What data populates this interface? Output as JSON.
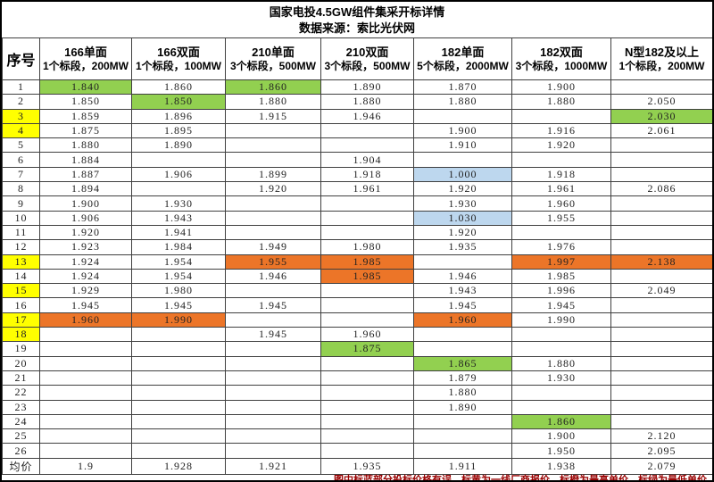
{
  "title": "国家电投4.5GW组件集采开标详情",
  "subtitle": "数据来源：索比光伏网",
  "footer_note": "图中标蓝部分投标价格有误，标黄为一线厂商报价，标橙为最高单价，标绿为最低单价",
  "colors": {
    "lowest_green": "#92D050",
    "tier1_yellow": "#FFFF00",
    "highest_orange": "#EC7528",
    "error_blue": "#BDD7EE",
    "note_red": "#990000"
  },
  "table": {
    "seq_header": "序号",
    "avg_label": "均价",
    "columns": [
      {
        "title": "166单面",
        "sub": "1个标段，200MW"
      },
      {
        "title": "166双面",
        "sub": "1个标段，100MW"
      },
      {
        "title": "210单面",
        "sub": "3个标段，500MW"
      },
      {
        "title": "210双面",
        "sub": "3个标段，500MW"
      },
      {
        "title": "182单面",
        "sub": "5个标段，2000MW"
      },
      {
        "title": "182双面",
        "sub": "3个标段，1000MW"
      },
      {
        "title": "N型182及以上",
        "sub": "1个标段，200MW"
      }
    ],
    "rows": [
      {
        "seq": "1",
        "seq_hl": "",
        "cells": [
          {
            "v": "1.840",
            "hl": "green"
          },
          {
            "v": "1.860",
            "hl": ""
          },
          {
            "v": "1.860",
            "hl": "green"
          },
          {
            "v": "1.890",
            "hl": ""
          },
          {
            "v": "1.870",
            "hl": ""
          },
          {
            "v": "1.900",
            "hl": ""
          },
          {
            "v": "",
            "hl": ""
          }
        ]
      },
      {
        "seq": "2",
        "seq_hl": "",
        "cells": [
          {
            "v": "1.850",
            "hl": ""
          },
          {
            "v": "1.850",
            "hl": "green"
          },
          {
            "v": "1.880",
            "hl": ""
          },
          {
            "v": "1.880",
            "hl": ""
          },
          {
            "v": "1.880",
            "hl": ""
          },
          {
            "v": "1.880",
            "hl": ""
          },
          {
            "v": "2.050",
            "hl": ""
          }
        ]
      },
      {
        "seq": "3",
        "seq_hl": "yellow",
        "cells": [
          {
            "v": "1.859",
            "hl": ""
          },
          {
            "v": "1.896",
            "hl": ""
          },
          {
            "v": "1.915",
            "hl": ""
          },
          {
            "v": "1.946",
            "hl": ""
          },
          {
            "v": "",
            "hl": ""
          },
          {
            "v": "",
            "hl": ""
          },
          {
            "v": "2.030",
            "hl": "green"
          }
        ]
      },
      {
        "seq": "4",
        "seq_hl": "yellow",
        "cells": [
          {
            "v": "1.875",
            "hl": ""
          },
          {
            "v": "1.895",
            "hl": ""
          },
          {
            "v": "",
            "hl": ""
          },
          {
            "v": "",
            "hl": ""
          },
          {
            "v": "1.900",
            "hl": ""
          },
          {
            "v": "1.916",
            "hl": ""
          },
          {
            "v": "2.061",
            "hl": ""
          }
        ]
      },
      {
        "seq": "5",
        "seq_hl": "",
        "cells": [
          {
            "v": "1.880",
            "hl": ""
          },
          {
            "v": "1.890",
            "hl": ""
          },
          {
            "v": "",
            "hl": ""
          },
          {
            "v": "",
            "hl": ""
          },
          {
            "v": "1.910",
            "hl": ""
          },
          {
            "v": "1.920",
            "hl": ""
          },
          {
            "v": "",
            "hl": ""
          }
        ]
      },
      {
        "seq": "6",
        "seq_hl": "",
        "cells": [
          {
            "v": "1.884",
            "hl": ""
          },
          {
            "v": "",
            "hl": ""
          },
          {
            "v": "",
            "hl": ""
          },
          {
            "v": "1.904",
            "hl": ""
          },
          {
            "v": "",
            "hl": ""
          },
          {
            "v": "",
            "hl": ""
          },
          {
            "v": "",
            "hl": ""
          }
        ]
      },
      {
        "seq": "7",
        "seq_hl": "",
        "cells": [
          {
            "v": "1.887",
            "hl": ""
          },
          {
            "v": "1.906",
            "hl": ""
          },
          {
            "v": "1.899",
            "hl": ""
          },
          {
            "v": "1.918",
            "hl": ""
          },
          {
            "v": "1.000",
            "hl": "blue"
          },
          {
            "v": "1.918",
            "hl": ""
          },
          {
            "v": "",
            "hl": ""
          }
        ]
      },
      {
        "seq": "8",
        "seq_hl": "",
        "cells": [
          {
            "v": "1.894",
            "hl": ""
          },
          {
            "v": "",
            "hl": ""
          },
          {
            "v": "1.920",
            "hl": ""
          },
          {
            "v": "1.961",
            "hl": ""
          },
          {
            "v": "1.920",
            "hl": ""
          },
          {
            "v": "1.961",
            "hl": ""
          },
          {
            "v": "2.086",
            "hl": ""
          }
        ]
      },
      {
        "seq": "9",
        "seq_hl": "",
        "cells": [
          {
            "v": "1.900",
            "hl": ""
          },
          {
            "v": "1.930",
            "hl": ""
          },
          {
            "v": "",
            "hl": ""
          },
          {
            "v": "",
            "hl": ""
          },
          {
            "v": "1.930",
            "hl": ""
          },
          {
            "v": "1.960",
            "hl": ""
          },
          {
            "v": "",
            "hl": ""
          }
        ]
      },
      {
        "seq": "10",
        "seq_hl": "",
        "cells": [
          {
            "v": "1.906",
            "hl": ""
          },
          {
            "v": "1.943",
            "hl": ""
          },
          {
            "v": "",
            "hl": ""
          },
          {
            "v": "",
            "hl": ""
          },
          {
            "v": "1.030",
            "hl": "blue"
          },
          {
            "v": "1.955",
            "hl": ""
          },
          {
            "v": "",
            "hl": ""
          }
        ]
      },
      {
        "seq": "11",
        "seq_hl": "",
        "cells": [
          {
            "v": "1.920",
            "hl": ""
          },
          {
            "v": "1.941",
            "hl": ""
          },
          {
            "v": "",
            "hl": ""
          },
          {
            "v": "",
            "hl": ""
          },
          {
            "v": "1.920",
            "hl": ""
          },
          {
            "v": "",
            "hl": ""
          },
          {
            "v": "",
            "hl": ""
          }
        ]
      },
      {
        "seq": "12",
        "seq_hl": "",
        "cells": [
          {
            "v": "1.923",
            "hl": ""
          },
          {
            "v": "1.984",
            "hl": ""
          },
          {
            "v": "1.949",
            "hl": ""
          },
          {
            "v": "1.980",
            "hl": ""
          },
          {
            "v": "1.935",
            "hl": ""
          },
          {
            "v": "1.976",
            "hl": ""
          },
          {
            "v": "",
            "hl": ""
          }
        ]
      },
      {
        "seq": "13",
        "seq_hl": "yellow",
        "cells": [
          {
            "v": "1.924",
            "hl": ""
          },
          {
            "v": "1.954",
            "hl": ""
          },
          {
            "v": "1.955",
            "hl": "orange"
          },
          {
            "v": "1.985",
            "hl": "orange"
          },
          {
            "v": "",
            "hl": ""
          },
          {
            "v": "1.997",
            "hl": "orange"
          },
          {
            "v": "2.138",
            "hl": "orange"
          }
        ]
      },
      {
        "seq": "14",
        "seq_hl": "",
        "cells": [
          {
            "v": "1.924",
            "hl": ""
          },
          {
            "v": "1.954",
            "hl": ""
          },
          {
            "v": "1.946",
            "hl": ""
          },
          {
            "v": "1.985",
            "hl": "orange"
          },
          {
            "v": "1.946",
            "hl": ""
          },
          {
            "v": "1.985",
            "hl": ""
          },
          {
            "v": "",
            "hl": ""
          }
        ]
      },
      {
        "seq": "15",
        "seq_hl": "yellow",
        "cells": [
          {
            "v": "1.929",
            "hl": ""
          },
          {
            "v": "1.980",
            "hl": ""
          },
          {
            "v": "",
            "hl": ""
          },
          {
            "v": "",
            "hl": ""
          },
          {
            "v": "1.943",
            "hl": ""
          },
          {
            "v": "1.996",
            "hl": ""
          },
          {
            "v": "2.049",
            "hl": ""
          }
        ]
      },
      {
        "seq": "16",
        "seq_hl": "",
        "cells": [
          {
            "v": "1.945",
            "hl": ""
          },
          {
            "v": "1.945",
            "hl": ""
          },
          {
            "v": "1.945",
            "hl": ""
          },
          {
            "v": "",
            "hl": ""
          },
          {
            "v": "1.945",
            "hl": ""
          },
          {
            "v": "1.945",
            "hl": ""
          },
          {
            "v": "",
            "hl": ""
          }
        ]
      },
      {
        "seq": "17",
        "seq_hl": "yellow",
        "cells": [
          {
            "v": "1.960",
            "hl": "orange"
          },
          {
            "v": "1.990",
            "hl": "orange"
          },
          {
            "v": "",
            "hl": ""
          },
          {
            "v": "",
            "hl": ""
          },
          {
            "v": "1.960",
            "hl": "orange"
          },
          {
            "v": "1.990",
            "hl": ""
          },
          {
            "v": "",
            "hl": ""
          }
        ]
      },
      {
        "seq": "18",
        "seq_hl": "yellow",
        "cells": [
          {
            "v": "",
            "hl": ""
          },
          {
            "v": "",
            "hl": ""
          },
          {
            "v": "1.945",
            "hl": ""
          },
          {
            "v": "1.960",
            "hl": ""
          },
          {
            "v": "",
            "hl": ""
          },
          {
            "v": "",
            "hl": ""
          },
          {
            "v": "",
            "hl": ""
          }
        ]
      },
      {
        "seq": "19",
        "seq_hl": "",
        "cells": [
          {
            "v": "",
            "hl": ""
          },
          {
            "v": "",
            "hl": ""
          },
          {
            "v": "",
            "hl": ""
          },
          {
            "v": "1.875",
            "hl": "green"
          },
          {
            "v": "",
            "hl": ""
          },
          {
            "v": "",
            "hl": ""
          },
          {
            "v": "",
            "hl": ""
          }
        ]
      },
      {
        "seq": "20",
        "seq_hl": "",
        "cells": [
          {
            "v": "",
            "hl": ""
          },
          {
            "v": "",
            "hl": ""
          },
          {
            "v": "",
            "hl": ""
          },
          {
            "v": "",
            "hl": ""
          },
          {
            "v": "1.865",
            "hl": "green"
          },
          {
            "v": "1.880",
            "hl": ""
          },
          {
            "v": "",
            "hl": ""
          }
        ]
      },
      {
        "seq": "21",
        "seq_hl": "",
        "cells": [
          {
            "v": "",
            "hl": ""
          },
          {
            "v": "",
            "hl": ""
          },
          {
            "v": "",
            "hl": ""
          },
          {
            "v": "",
            "hl": ""
          },
          {
            "v": "1.879",
            "hl": ""
          },
          {
            "v": "1.930",
            "hl": ""
          },
          {
            "v": "",
            "hl": ""
          }
        ]
      },
      {
        "seq": "22",
        "seq_hl": "",
        "cells": [
          {
            "v": "",
            "hl": ""
          },
          {
            "v": "",
            "hl": ""
          },
          {
            "v": "",
            "hl": ""
          },
          {
            "v": "",
            "hl": ""
          },
          {
            "v": "1.880",
            "hl": ""
          },
          {
            "v": "",
            "hl": ""
          },
          {
            "v": "",
            "hl": ""
          }
        ]
      },
      {
        "seq": "23",
        "seq_hl": "",
        "cells": [
          {
            "v": "",
            "hl": ""
          },
          {
            "v": "",
            "hl": ""
          },
          {
            "v": "",
            "hl": ""
          },
          {
            "v": "",
            "hl": ""
          },
          {
            "v": "1.890",
            "hl": ""
          },
          {
            "v": "",
            "hl": ""
          },
          {
            "v": "",
            "hl": ""
          }
        ]
      },
      {
        "seq": "24",
        "seq_hl": "",
        "cells": [
          {
            "v": "",
            "hl": ""
          },
          {
            "v": "",
            "hl": ""
          },
          {
            "v": "",
            "hl": ""
          },
          {
            "v": "",
            "hl": ""
          },
          {
            "v": "",
            "hl": ""
          },
          {
            "v": "1.860",
            "hl": "green"
          },
          {
            "v": "",
            "hl": ""
          }
        ]
      },
      {
        "seq": "25",
        "seq_hl": "",
        "cells": [
          {
            "v": "",
            "hl": ""
          },
          {
            "v": "",
            "hl": ""
          },
          {
            "v": "",
            "hl": ""
          },
          {
            "v": "",
            "hl": ""
          },
          {
            "v": "",
            "hl": ""
          },
          {
            "v": "1.900",
            "hl": ""
          },
          {
            "v": "2.120",
            "hl": ""
          }
        ]
      },
      {
        "seq": "26",
        "seq_hl": "",
        "cells": [
          {
            "v": "",
            "hl": ""
          },
          {
            "v": "",
            "hl": ""
          },
          {
            "v": "",
            "hl": ""
          },
          {
            "v": "",
            "hl": ""
          },
          {
            "v": "",
            "hl": ""
          },
          {
            "v": "1.950",
            "hl": ""
          },
          {
            "v": "2.095",
            "hl": ""
          }
        ]
      }
    ],
    "avg_row": [
      "1.9",
      "1.928",
      "1.921",
      "1.935",
      "1.911",
      "1.938",
      "2.079"
    ]
  }
}
